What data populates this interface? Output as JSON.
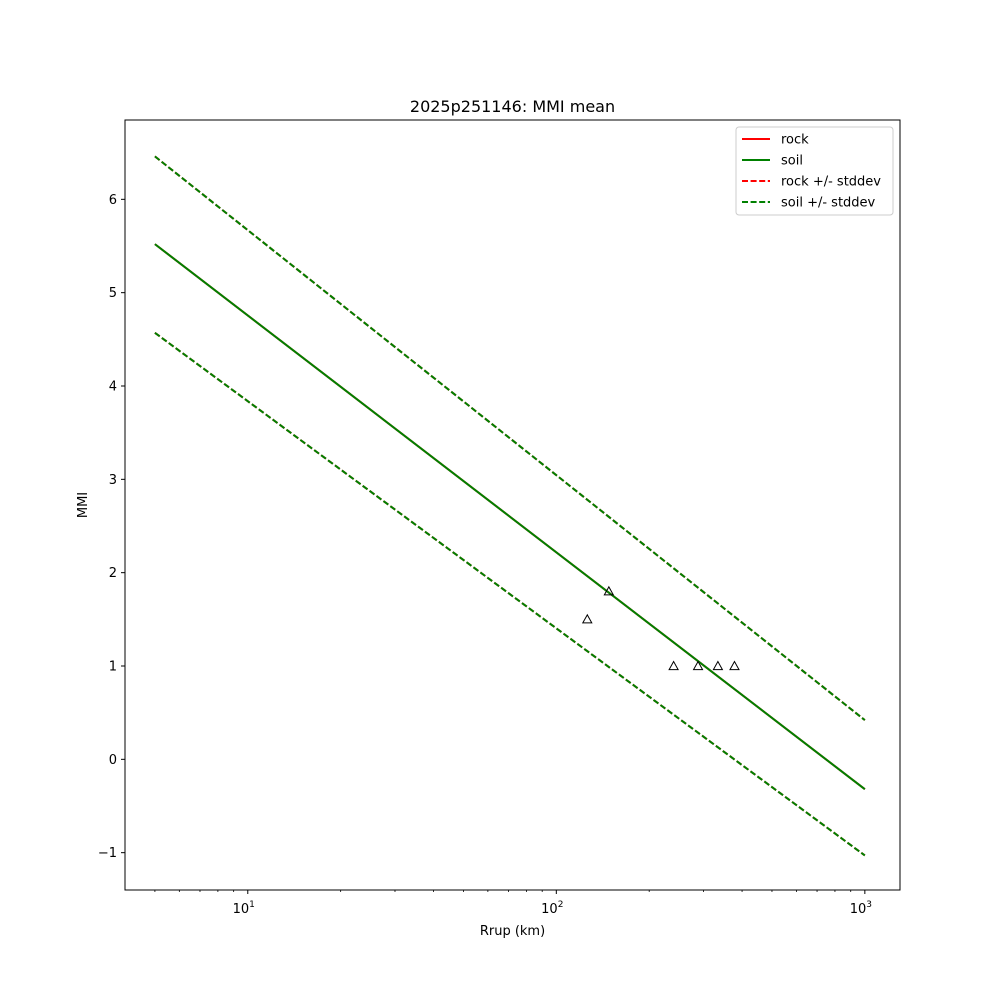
{
  "chart_data": {
    "type": "line",
    "title": "2025p251146: MMI mean",
    "xlabel": "Rrup (km)",
    "ylabel": "MMI",
    "xscale": "log",
    "xlim": [
      4,
      1300
    ],
    "ylim": [
      -1.4,
      6.85
    ],
    "x_ticks": [
      {
        "value": 10,
        "base": "10",
        "exp": "1"
      },
      {
        "value": 100,
        "base": "10",
        "exp": "2"
      },
      {
        "value": 1000,
        "base": "10",
        "exp": "3"
      }
    ],
    "y_ticks": [
      {
        "value": -1,
        "label": "−1"
      },
      {
        "value": 0,
        "label": "0"
      },
      {
        "value": 1,
        "label": "1"
      },
      {
        "value": 2,
        "label": "2"
      },
      {
        "value": 3,
        "label": "3"
      },
      {
        "value": 4,
        "label": "4"
      },
      {
        "value": 5,
        "label": "5"
      },
      {
        "value": 6,
        "label": "6"
      }
    ],
    "grid": false,
    "legend_position": "top-right",
    "series": [
      {
        "name": "rock",
        "color": "#ff0000",
        "style": "solid",
        "x": [
          5,
          1000
        ],
        "y": [
          5.52,
          -0.32
        ]
      },
      {
        "name": "soil",
        "color": "#008000",
        "style": "solid",
        "x": [
          5,
          1000
        ],
        "y": [
          5.52,
          -0.32
        ]
      },
      {
        "name": "rock +/- stddev",
        "color": "#ff0000",
        "style": "dashed",
        "x": [
          5,
          1000
        ],
        "y_upper": [
          6.46,
          0.42
        ],
        "y_lower": [
          4.57,
          -1.03
        ]
      },
      {
        "name": "soil +/- stddev",
        "color": "#008000",
        "style": "dashed",
        "x": [
          5,
          1000
        ],
        "y_upper": [
          6.46,
          0.42
        ],
        "y_lower": [
          4.57,
          -1.03
        ]
      }
    ],
    "observations": {
      "marker": "triangle",
      "points": [
        {
          "x": 126,
          "y": 1.5
        },
        {
          "x": 148,
          "y": 1.8
        },
        {
          "x": 240,
          "y": 1.0
        },
        {
          "x": 288,
          "y": 1.0
        },
        {
          "x": 334,
          "y": 1.0
        },
        {
          "x": 378,
          "y": 1.0
        }
      ]
    }
  }
}
